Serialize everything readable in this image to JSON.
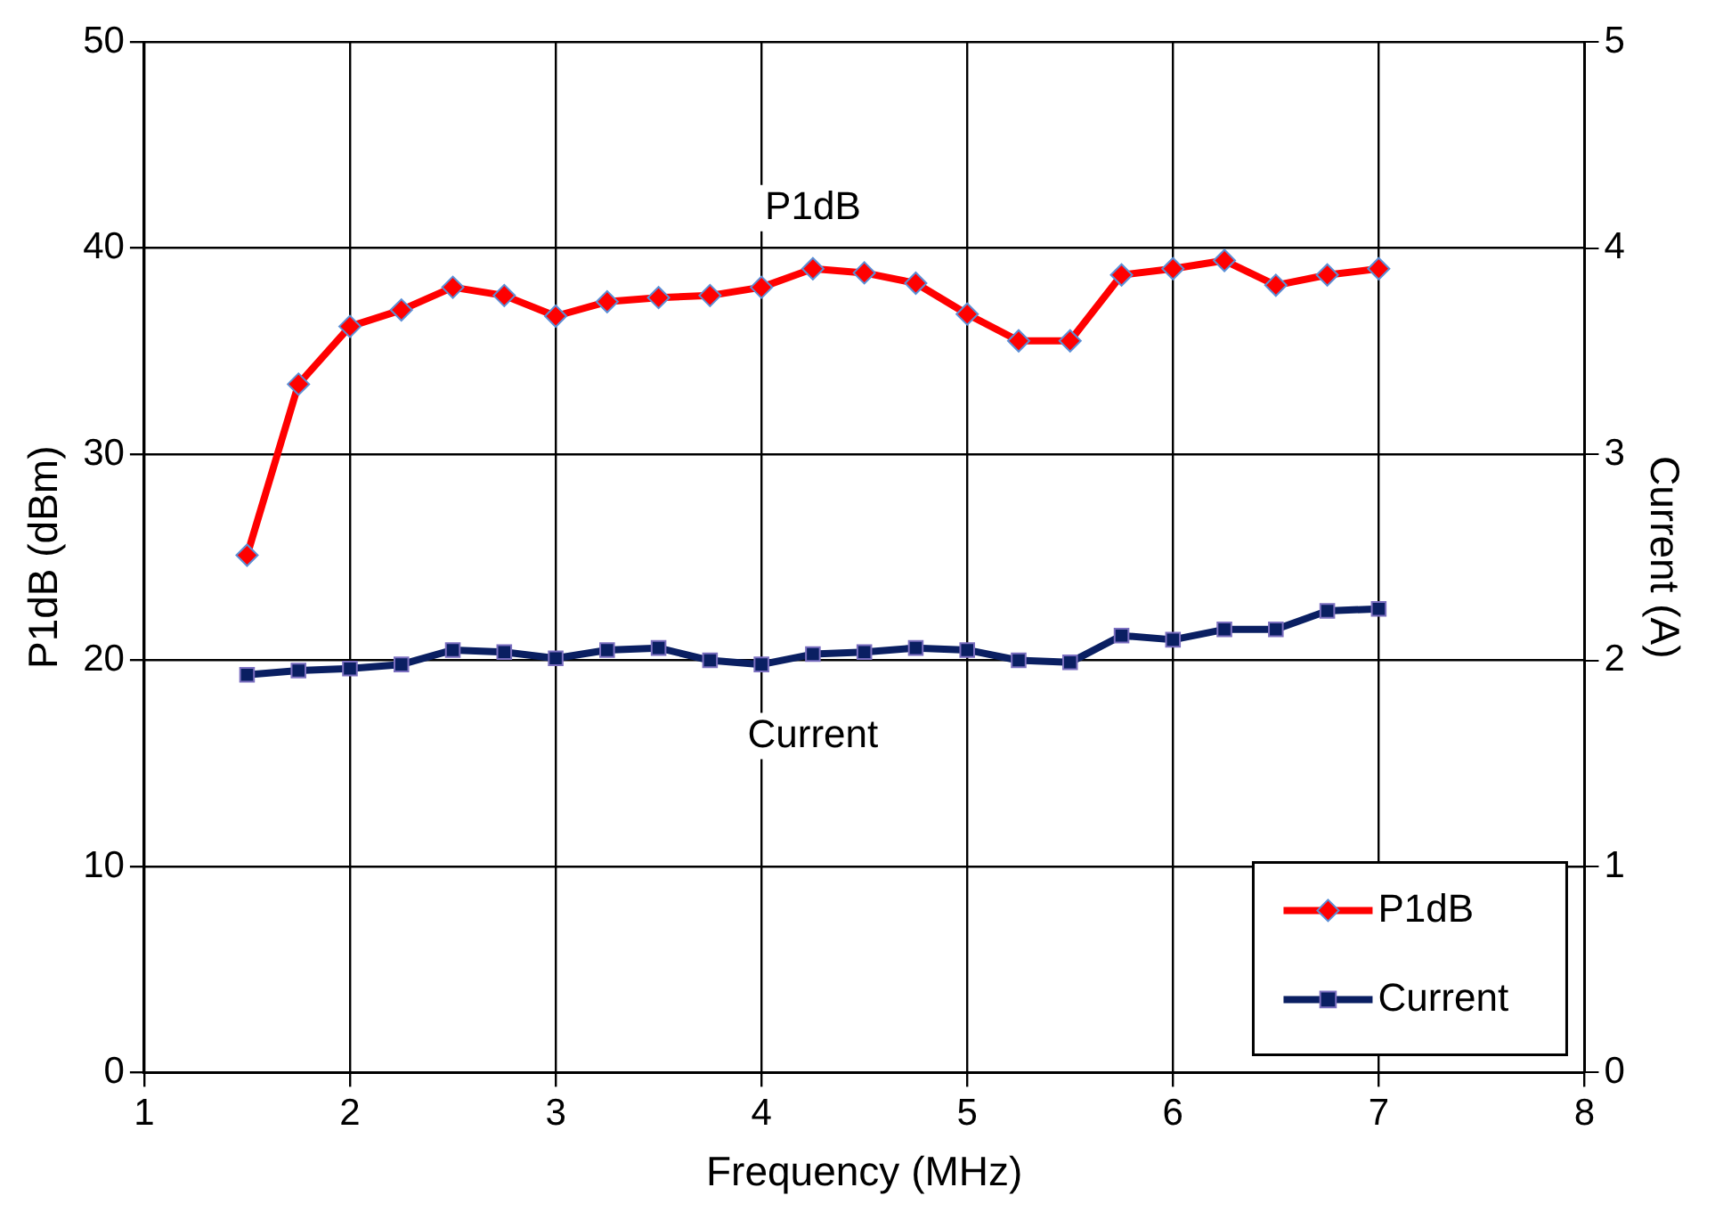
{
  "chart_data": {
    "type": "line",
    "xlabel": "Frequency (MHz)",
    "ylabel": "P1dB (dBm)",
    "y2label": "Current (A)",
    "x": [
      1.5,
      1.75,
      2,
      2.25,
      2.5,
      2.75,
      3,
      3.25,
      3.5,
      3.75,
      4,
      4.25,
      4.5,
      4.75,
      5,
      5.25,
      5.5,
      5.75,
      6,
      6.25,
      6.5,
      6.75,
      7
    ],
    "series": [
      {
        "name": "P1dB",
        "color": "#ff0000",
        "marker": "diamond",
        "values": [
          25.1,
          33.4,
          36.2,
          37.0,
          38.1,
          37.7,
          36.7,
          37.4,
          37.6,
          37.7,
          38.1,
          39.0,
          38.8,
          38.3,
          36.8,
          35.5,
          35.5,
          38.7,
          39.0,
          39.4,
          38.2,
          38.7,
          39.0
        ]
      },
      {
        "name": "Current",
        "color": "#0a1f62",
        "marker": "square",
        "axis": "y2",
        "values": [
          1.93,
          1.95,
          1.96,
          1.98,
          2.05,
          2.04,
          2.01,
          2.05,
          2.06,
          2.0,
          1.98,
          2.03,
          2.04,
          2.06,
          2.05,
          2.0,
          1.99,
          2.12,
          2.1,
          2.15,
          2.15,
          2.24,
          2.25
        ]
      }
    ],
    "xlim": [
      1,
      8
    ],
    "xticks": [
      1,
      2,
      3,
      4,
      5,
      6,
      7,
      8
    ],
    "ylim": [
      0,
      50
    ],
    "yticks": [
      0,
      10,
      20,
      30,
      40,
      50
    ],
    "y2lim": [
      0,
      5
    ],
    "y2ticks": [
      0,
      1,
      2,
      3,
      4,
      5
    ],
    "grid": true,
    "legend": "bottom right",
    "line_style": "solid",
    "annotations": [
      "P1dB",
      "Current"
    ]
  }
}
